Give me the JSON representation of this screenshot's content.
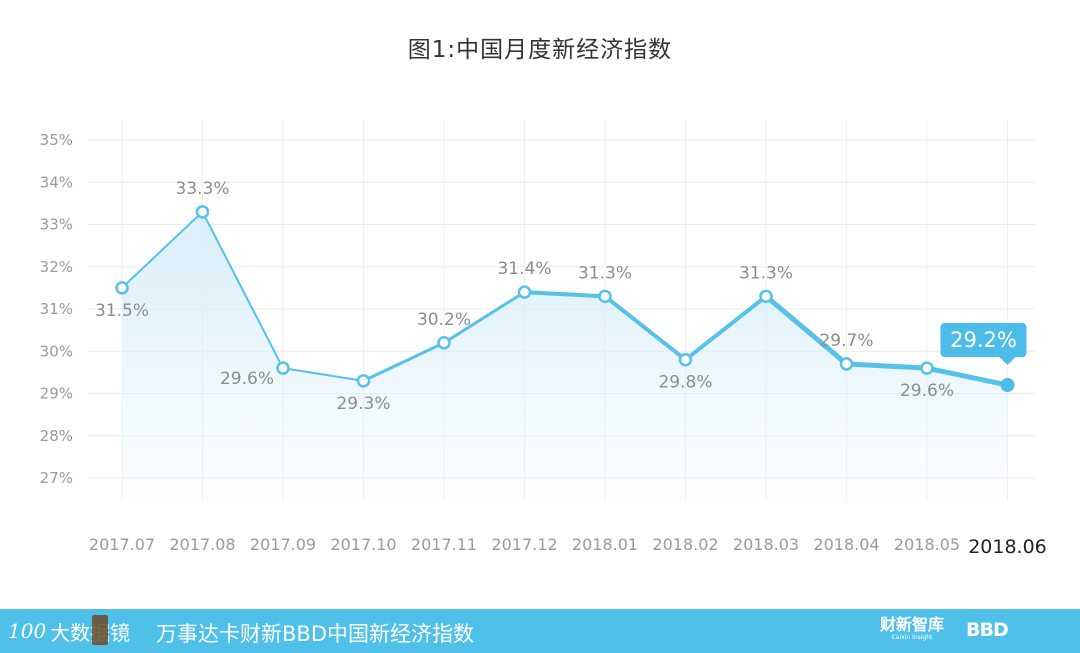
{
  "chart_data": {
    "type": "line",
    "title": "图1:中国月度新经济指数",
    "categories": [
      "2017.07",
      "2017.08",
      "2017.09",
      "2017.10",
      "2017.11",
      "2017.12",
      "2018.01",
      "2018.02",
      "2018.03",
      "2018.04",
      "2018.05",
      "2018.06"
    ],
    "series": [
      {
        "values": [
          31.5,
          33.3,
          29.6,
          29.3,
          30.2,
          31.4,
          31.3,
          29.8,
          31.3,
          29.7,
          29.6,
          29.2
        ],
        "labels": [
          "31.5%",
          "33.3%",
          "29.6%",
          "29.3%",
          "30.2%",
          "31.4%",
          "31.3%",
          "29.8%",
          "31.3%",
          "29.7%",
          "29.6%",
          "29.2%"
        ]
      }
    ],
    "y_ticks": [
      "27%",
      "28%",
      "29%",
      "30%",
      "31%",
      "32%",
      "33%",
      "34%",
      "35%"
    ],
    "ylim": [
      27,
      35
    ],
    "grid": true,
    "highlight_index": 11,
    "colors": {
      "line": "#56c1e9",
      "highlight": "#4bbde8",
      "fill": "#d7eef9",
      "axis_text": "#9a9a9a",
      "label_text": "#8c8c8c"
    }
  },
  "footer": {
    "logo_mark": "100",
    "logo_text": "大数据镜",
    "caption": "万事达卡财新BBD中国新经济指数",
    "brand_caixin_cn": "财新智库",
    "brand_caixin_en": "Caixin Insight",
    "brand_bbd": "BBD"
  }
}
